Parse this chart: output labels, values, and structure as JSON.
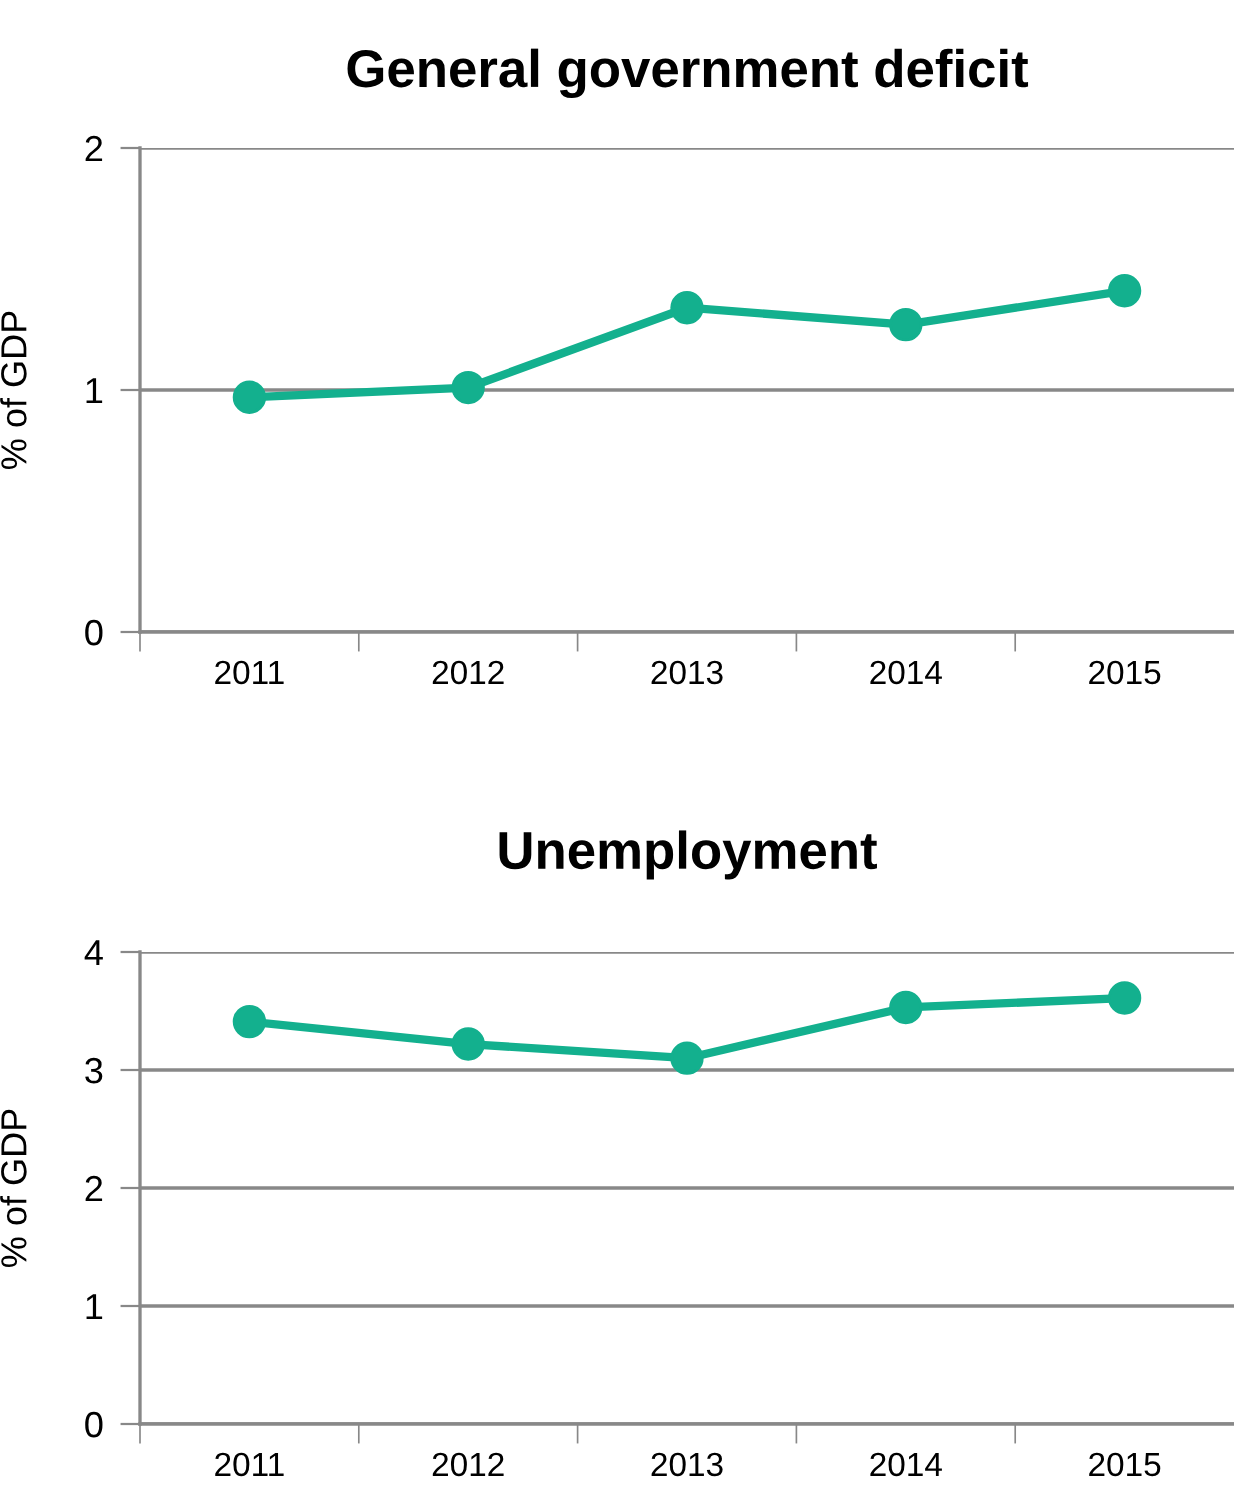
{
  "chart_data": [
    {
      "type": "line",
      "title": "General government deficit",
      "ylabel": "% of GDP",
      "categories": [
        "2011",
        "2012",
        "2013",
        "2014",
        "2015"
      ],
      "series": [
        {
          "color": "#13b08e",
          "values": [
            0.97,
            1.01,
            1.34,
            1.27,
            1.41
          ]
        }
      ],
      "ylim": [
        0,
        2
      ],
      "yticks": [
        0,
        1,
        2
      ],
      "grid": "y",
      "marker": "circle",
      "line_style": "solid"
    },
    {
      "type": "line",
      "title": "Unemployment",
      "ylabel": "% of GDP",
      "categories": [
        "2011",
        "2012",
        "2013",
        "2014",
        "2015"
      ],
      "series": [
        {
          "color": "#13b08e",
          "values": [
            3.41,
            3.22,
            3.1,
            3.53,
            3.61
          ]
        }
      ],
      "ylim": [
        0,
        4
      ],
      "yticks": [
        0,
        1,
        2,
        3,
        4
      ],
      "grid": "y",
      "marker": "circle",
      "line_style": "solid"
    }
  ]
}
